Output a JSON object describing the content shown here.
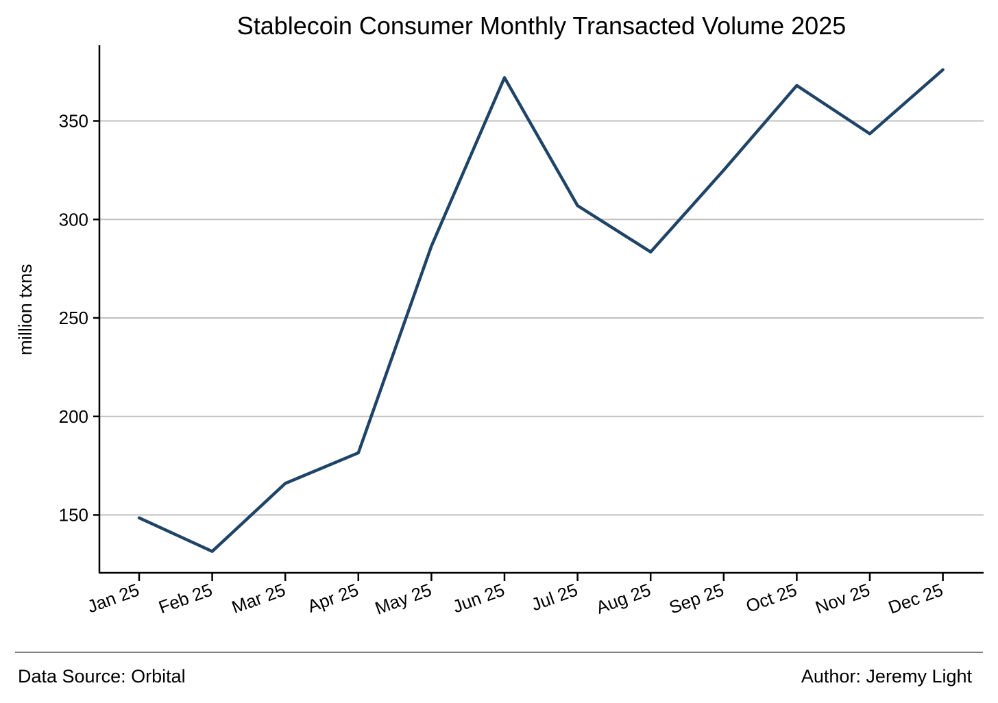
{
  "chart_data": {
    "type": "line",
    "title": "Stablecoin Consumer Monthly Transacted Volume 2025",
    "xlabel": "",
    "ylabel": "million txns",
    "categories": [
      "Jan 25",
      "Feb 25",
      "Mar 25",
      "Apr 25",
      "May 25",
      "Jun 25",
      "Jul 25",
      "Aug 25",
      "Sep 25",
      "Oct 25",
      "Nov 25",
      "Dec 25"
    ],
    "x_dates": [
      "2025-01",
      "2025-02",
      "2025-03",
      "2025-04",
      "2025-05",
      "2025-06",
      "2025-07",
      "2025-08",
      "2025-09",
      "2025-10",
      "2025-11",
      "2025-12"
    ],
    "series": [
      {
        "values": [
          148.5,
          131.5,
          166,
          181.5,
          286.5,
          372,
          307,
          283.5,
          325,
          368,
          343.5,
          376
        ]
      }
    ],
    "ylim": [
      120,
      390
    ],
    "yticks": [
      150,
      200,
      250,
      300,
      350
    ],
    "grid": "horizontal",
    "legend": "none",
    "colors": {
      "line": "#1f4467",
      "grid": "#c0c0c0",
      "axis": "#000000",
      "footer_rule": "#808080"
    }
  },
  "footer": {
    "source": "Data Source: Orbital",
    "author": "Author: Jeremy Light"
  }
}
